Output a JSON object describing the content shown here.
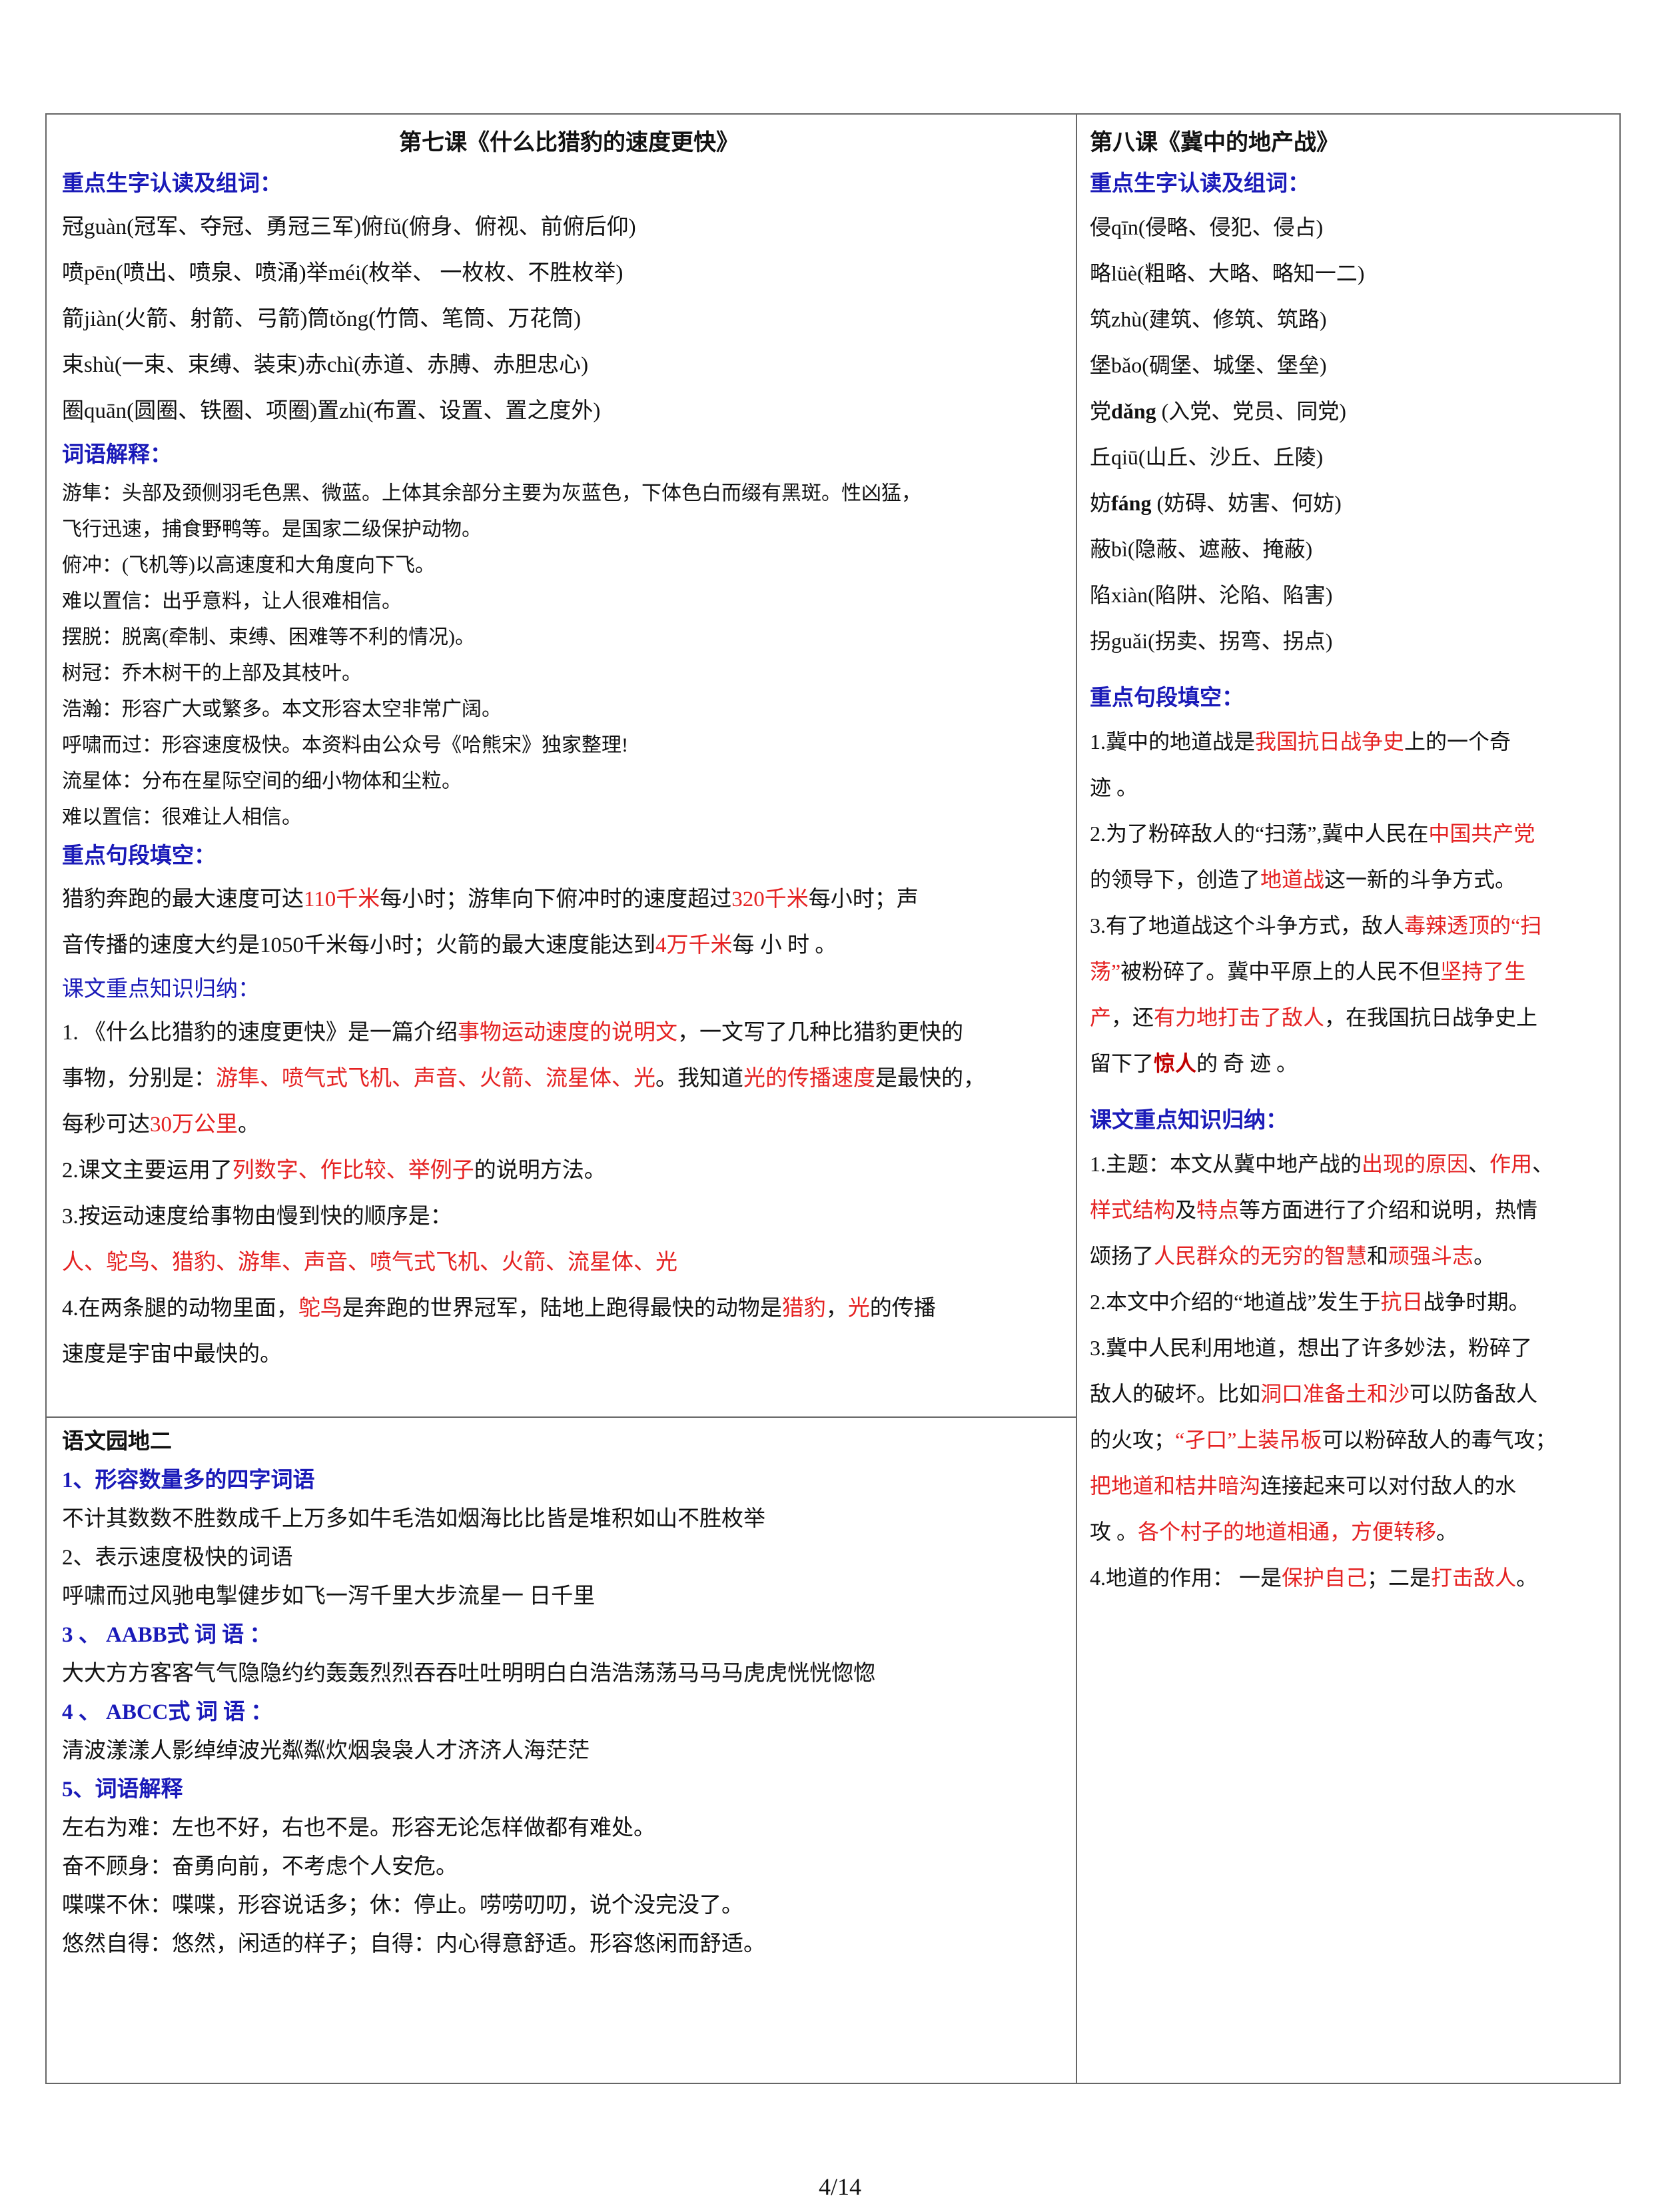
{
  "page": {
    "left_top": [
      {
        "kind": "title",
        "runs": [
          {
            "text": "第七课《什么比猎豹的速度更快》"
          }
        ]
      },
      {
        "kind": "heading",
        "runs": [
          {
            "text": "重点生字认读及组词："
          }
        ]
      },
      {
        "kind": "body",
        "runs": [
          {
            "text": "冠guàn(冠军、夺冠、勇冠三军)俯fǔ(俯身、俯视、前俯后仰)"
          }
        ]
      },
      {
        "kind": "body",
        "runs": [
          {
            "text": "喷pēn(喷出、喷泉、喷涌)举méi(枚举、  一枚枚、不胜枚举)"
          }
        ]
      },
      {
        "kind": "body",
        "runs": [
          {
            "text": "箭jiàn(火箭、射箭、弓箭)筒tǒng(竹筒、笔筒、万花筒)"
          }
        ]
      },
      {
        "kind": "body",
        "runs": [
          {
            "text": "束shù(一束、束缚、装束)赤chì(赤道、赤膊、赤胆忠心)"
          }
        ]
      },
      {
        "kind": "body",
        "runs": [
          {
            "text": "圈quān(圆圈、铁圈、项圈)置zhì(布置、设置、置之度外)"
          }
        ]
      },
      {
        "kind": "heading",
        "runs": [
          {
            "text": "词语解释："
          }
        ]
      },
      {
        "kind": "small",
        "runs": [
          {
            "text": "游隼：头部及颈侧羽毛色黑、微蓝。上体其余部分主要为灰蓝色，下体色白而缀有黑斑。性凶猛，"
          }
        ]
      },
      {
        "kind": "small",
        "runs": [
          {
            "text": "飞行迅速，捕食野鸭等。是国家二级保护动物。"
          }
        ]
      },
      {
        "kind": "small",
        "runs": [
          {
            "text": "俯冲：(飞机等)以高速度和大角度向下飞。"
          }
        ]
      },
      {
        "kind": "small",
        "runs": [
          {
            "text": "难以置信：出乎意料，让人很难相信。"
          }
        ]
      },
      {
        "kind": "small",
        "runs": [
          {
            "text": "摆脱：脱离(牵制、束缚、困难等不利的情况)。"
          }
        ]
      },
      {
        "kind": "small",
        "runs": [
          {
            "text": "树冠：乔木树干的上部及其枝叶。"
          }
        ]
      },
      {
        "kind": "small",
        "runs": [
          {
            "text": "浩瀚：形容广大或繁多。本文形容太空非常广阔。"
          }
        ]
      },
      {
        "kind": "small",
        "runs": [
          {
            "text": "呼啸而过：形容速度极快。本资料由公众号《哈熊宋》独家整理!"
          }
        ]
      },
      {
        "kind": "small",
        "runs": [
          {
            "text": "流星体：分布在星际空间的细小物体和尘粒。"
          }
        ]
      },
      {
        "kind": "small",
        "runs": [
          {
            "text": "难以置信：很难让人相信。"
          }
        ]
      },
      {
        "kind": "heading",
        "runs": [
          {
            "text": "重点句段填空："
          }
        ]
      },
      {
        "kind": "body",
        "runs": [
          {
            "text": "猎豹奔跑的最大速度可达"
          },
          {
            "text": "110千米",
            "color": "#e52222"
          },
          {
            "text": "每小时；游隼向下俯冲时的速度超过"
          },
          {
            "text": "320千米",
            "color": "#e52222"
          },
          {
            "text": "每小时；声"
          }
        ]
      },
      {
        "kind": "body",
        "runs": [
          {
            "text": "音传播的速度大约是1050千米每小时；火箭的最大速度能达到"
          },
          {
            "text": "4万千米",
            "color": "#e52222"
          },
          {
            "text": "每 小 时 。"
          }
        ]
      },
      {
        "kind": "subheading",
        "runs": [
          {
            "text": "课文重点知识归纳："
          }
        ]
      },
      {
        "kind": "body",
        "runs": [
          {
            "text": "1. 《什么比猎豹的速度更快》是一篇介绍"
          },
          {
            "text": "事物运动速度的说明文",
            "color": "#e52222"
          },
          {
            "text": "，一文写了几种比猎豹更快的"
          }
        ]
      },
      {
        "kind": "body",
        "runs": [
          {
            "text": "事物，分别是："
          },
          {
            "text": "游隼、喷气式飞机、声音、火箭、流星体、光",
            "color": "#e52222"
          },
          {
            "text": "。我知道"
          },
          {
            "text": "光的传播速度",
            "color": "#e52222"
          },
          {
            "text": "是最快的，"
          }
        ]
      },
      {
        "kind": "body",
        "runs": [
          {
            "text": "每秒可达"
          },
          {
            "text": "30万公里",
            "color": "#e52222"
          },
          {
            "text": "。"
          }
        ]
      },
      {
        "kind": "body",
        "runs": [
          {
            "text": "2.课文主要运用了"
          },
          {
            "text": "列数字、作比较、举例子",
            "color": "#e52222"
          },
          {
            "text": "的说明方法。"
          }
        ]
      },
      {
        "kind": "body",
        "runs": [
          {
            "text": "3.按运动速度给事物由慢到快的顺序是："
          }
        ]
      },
      {
        "kind": "body",
        "runs": [
          {
            "text": "人、鸵鸟、猎豹、游隼、声音、喷气式飞机、火箭、流星体、光",
            "color": "#e52222"
          }
        ]
      },
      {
        "kind": "body",
        "runs": [
          {
            "text": "4.在两条腿的动物里面，"
          },
          {
            "text": "鸵鸟",
            "color": "#e52222"
          },
          {
            "text": "是奔跑的世界冠军，陆地上跑得最快的动物是"
          },
          {
            "text": "猎豹",
            "color": "#e52222"
          },
          {
            "text": "，"
          },
          {
            "text": "光",
            "color": "#e52222"
          },
          {
            "text": "的传播"
          }
        ]
      },
      {
        "kind": "body",
        "runs": [
          {
            "text": "速度是宇宙中最快的。"
          }
        ]
      }
    ],
    "left_bottom": [
      {
        "kind": "title2",
        "runs": [
          {
            "text": "语文园地二"
          }
        ]
      },
      {
        "kind": "heading",
        "runs": [
          {
            "text": "1、形容数量多的四字词语"
          }
        ]
      },
      {
        "kind": "mid",
        "runs": [
          {
            "text": "不计其数数不胜数成千上万多如牛毛浩如烟海比比皆是堆积如山不胜枚举"
          }
        ]
      },
      {
        "kind": "mid",
        "runs": [
          {
            "text": "2、表示速度极快的词语"
          }
        ]
      },
      {
        "kind": "mid",
        "runs": [
          {
            "text": "呼啸而过风驰电掣健步如飞一泻千里大步流星一 日千里"
          }
        ]
      },
      {
        "kind": "heading",
        "runs": [
          {
            "text": "3 、 AABB式 词 语 ："
          }
        ]
      },
      {
        "kind": "mid",
        "runs": [
          {
            "text": "大大方方客客气气隐隐约约轰轰烈烈吞吞吐吐明明白白浩浩荡荡马马马虎虎恍恍惚惚"
          }
        ]
      },
      {
        "kind": "heading",
        "runs": [
          {
            "text": "4 、 ABCC式 词 语 ："
          }
        ]
      },
      {
        "kind": "mid",
        "runs": [
          {
            "text": "清波漾漾人影绰绰波光粼粼炊烟袅袅人才济济人海茫茫"
          }
        ]
      },
      {
        "kind": "heading",
        "runs": [
          {
            "text": "5、词语解释"
          }
        ]
      },
      {
        "kind": "mid",
        "runs": [
          {
            "text": "左右为难：左也不好，右也不是。形容无论怎样做都有难处。"
          }
        ]
      },
      {
        "kind": "mid",
        "runs": [
          {
            "text": "奋不顾身：奋勇向前，不考虑个人安危。"
          }
        ]
      },
      {
        "kind": "mid",
        "runs": [
          {
            "text": "喋喋不休：喋喋，形容说话多；休：停止。唠唠叨叨，说个没完没了。"
          }
        ]
      },
      {
        "kind": "mid",
        "runs": [
          {
            "text": "悠然自得：悠然，闲适的样子；自得：内心得意舒适。形容悠闲而舒适。"
          }
        ]
      }
    ],
    "right": [
      {
        "kind": "title",
        "runs": [
          {
            "text": "第八课《冀中的地产战》"
          }
        ]
      },
      {
        "kind": "heading",
        "runs": [
          {
            "text": "重点生字认读及组词："
          }
        ]
      },
      {
        "kind": "body",
        "runs": [
          {
            "text": "侵qīn(侵略、侵犯、侵占)"
          }
        ]
      },
      {
        "kind": "body",
        "runs": [
          {
            "text": "略lüè(粗略、大略、略知一二)"
          }
        ]
      },
      {
        "kind": "body",
        "runs": [
          {
            "text": "筑zhù(建筑、修筑、筑路)"
          }
        ]
      },
      {
        "kind": "body",
        "runs": [
          {
            "text": "堡bǎo(碉堡、城堡、堡垒)"
          }
        ]
      },
      {
        "kind": "body",
        "runs": [
          {
            "text": "党"
          },
          {
            "text": "dǎng",
            "bold": true
          },
          {
            "text": " (入党、党员、同党)"
          }
        ]
      },
      {
        "kind": "body",
        "runs": [
          {
            "text": "丘qiū(山丘、沙丘、丘陵)"
          }
        ]
      },
      {
        "kind": "body",
        "runs": [
          {
            "text": "妨"
          },
          {
            "text": "fáng",
            "bold": true
          },
          {
            "text": " (妨碍、妨害、何妨)"
          }
        ]
      },
      {
        "kind": "body",
        "runs": [
          {
            "text": "蔽bì(隐蔽、遮蔽、掩蔽)"
          }
        ]
      },
      {
        "kind": "body",
        "runs": [
          {
            "text": "陷xiàn(陷阱、沦陷、陷害)"
          }
        ]
      },
      {
        "kind": "body",
        "runs": [
          {
            "text": "拐guǎi(拐卖、拐弯、拐点)"
          }
        ]
      },
      {
        "kind": "heading",
        "runs": [
          {
            "text": "重点句段填空："
          }
        ]
      },
      {
        "kind": "body",
        "runs": [
          {
            "text": "1.冀中的地道战是"
          },
          {
            "text": "我国抗日战争史",
            "color": "#e52222"
          },
          {
            "text": "上的一个奇"
          }
        ]
      },
      {
        "kind": "body",
        "runs": [
          {
            "text": "迹  。"
          }
        ]
      },
      {
        "kind": "body",
        "runs": [
          {
            "text": "2.为了粉碎敌人的“扫荡”,冀中人民在"
          },
          {
            "text": "中国共产党",
            "color": "#e52222"
          }
        ]
      },
      {
        "kind": "body",
        "runs": [
          {
            "text": "的领导下，创造了"
          },
          {
            "text": "地道战",
            "color": "#e52222"
          },
          {
            "text": "这一新的斗争方式。"
          }
        ]
      },
      {
        "kind": "body",
        "runs": [
          {
            "text": "3.有了地道战这个斗争方式，敌人"
          },
          {
            "text": "毒辣透顶的“扫",
            "color": "#e52222"
          }
        ]
      },
      {
        "kind": "body",
        "runs": [
          {
            "text": "荡”",
            "color": "#e52222"
          },
          {
            "text": "被粉碎了。冀中平原上的人民不但"
          },
          {
            "text": "坚持了生",
            "color": "#e52222"
          }
        ]
      },
      {
        "kind": "body",
        "runs": [
          {
            "text": "产",
            "color": "#e52222"
          },
          {
            "text": "，还"
          },
          {
            "text": "有力地打击了敌人",
            "color": "#e52222"
          },
          {
            "text": "，在我国抗日战争史上"
          }
        ]
      },
      {
        "kind": "body",
        "runs": [
          {
            "text": "留下了"
          },
          {
            "text": "惊人",
            "color": "#c00000",
            "bold": true
          },
          {
            "text": "的 奇 迹 。"
          }
        ]
      },
      {
        "kind": "heading",
        "runs": [
          {
            "text": "课文重点知识归纳："
          }
        ]
      },
      {
        "kind": "body",
        "runs": [
          {
            "text": "1.主题：本文从冀中地产战的"
          },
          {
            "text": "出现的原因",
            "color": "#e52222"
          },
          {
            "text": "、"
          },
          {
            "text": "作用",
            "color": "#e52222"
          },
          {
            "text": "、"
          }
        ]
      },
      {
        "kind": "body",
        "runs": [
          {
            "text": "样式结构",
            "color": "#e52222"
          },
          {
            "text": "及"
          },
          {
            "text": "特点",
            "color": "#e52222"
          },
          {
            "text": "等方面进行了介绍和说明，热情"
          }
        ]
      },
      {
        "kind": "body",
        "runs": [
          {
            "text": "颂扬了"
          },
          {
            "text": "人民群众的无穷的智慧",
            "color": "#e52222"
          },
          {
            "text": "和"
          },
          {
            "text": "顽强斗志",
            "color": "#e52222"
          },
          {
            "text": "。"
          }
        ]
      },
      {
        "kind": "body",
        "runs": [
          {
            "text": "2.本文中介绍的“地道战”发生于"
          },
          {
            "text": "抗日",
            "color": "#e52222"
          },
          {
            "text": "战争时期。"
          }
        ]
      },
      {
        "kind": "body",
        "runs": [
          {
            "text": "3.冀中人民利用地道，想出了许多妙法，粉碎了"
          }
        ]
      },
      {
        "kind": "body",
        "runs": [
          {
            "text": "敌人的破坏。比如"
          },
          {
            "text": "洞口准备土和沙",
            "color": "#e52222"
          },
          {
            "text": "可以防备敌人"
          }
        ]
      },
      {
        "kind": "body",
        "runs": [
          {
            "text": "的火攻；"
          },
          {
            "text": "“孑口”上装吊板",
            "color": "#e52222"
          },
          {
            "text": "可以粉碎敌人的毒气攻；"
          }
        ]
      },
      {
        "kind": "body",
        "runs": [
          {
            "text": "把地道和桔井暗沟",
            "color": "#e52222"
          },
          {
            "text": "连接起来可以对付敌人的水"
          }
        ]
      },
      {
        "kind": "body",
        "runs": [
          {
            "text": "攻  。"
          },
          {
            "text": "各个村子的地道相通，方便转移",
            "color": "#e52222"
          },
          {
            "text": "。"
          }
        ]
      },
      {
        "kind": "body",
        "runs": [
          {
            "text": "4.地道的作用：   一是"
          },
          {
            "text": "保护自己",
            "color": "#e52222"
          },
          {
            "text": "；二是"
          },
          {
            "text": "打击敌人",
            "color": "#e52222"
          },
          {
            "text": "。"
          }
        ]
      }
    ]
  },
  "footer": "4/14"
}
